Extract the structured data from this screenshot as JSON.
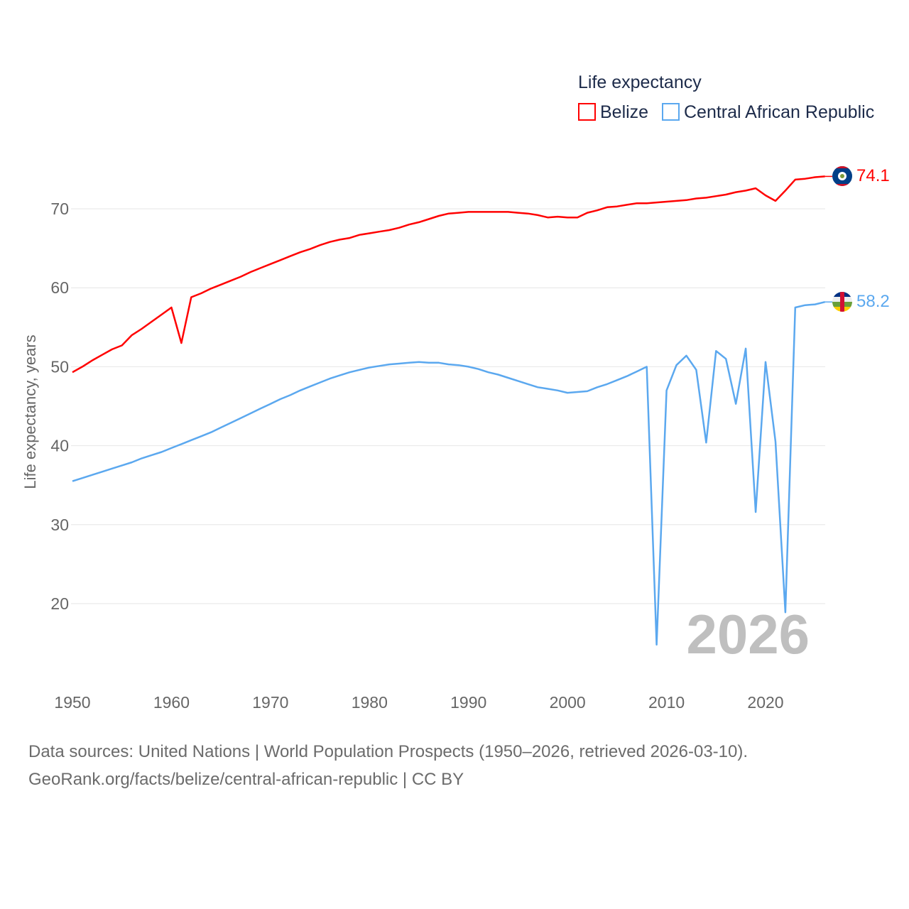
{
  "chart_data": {
    "type": "line",
    "legend_title": "Life expectancy",
    "legend_position": "top-right",
    "ylabel": "Life expectancy, years",
    "xlabel": "",
    "xlim": [
      1950,
      2026
    ],
    "ylim": [
      12,
      76
    ],
    "grid": true,
    "x_ticks": [
      "1950",
      "1960",
      "1970",
      "1980",
      "1990",
      "2000",
      "2010",
      "2020"
    ],
    "y_ticks": [
      "20",
      "30",
      "40",
      "50",
      "60",
      "70"
    ],
    "year_watermark": "2026",
    "x": [
      1950,
      1951,
      1952,
      1953,
      1954,
      1955,
      1956,
      1957,
      1958,
      1959,
      1960,
      1961,
      1962,
      1963,
      1964,
      1965,
      1966,
      1967,
      1968,
      1969,
      1970,
      1971,
      1972,
      1973,
      1974,
      1975,
      1976,
      1977,
      1978,
      1979,
      1980,
      1981,
      1982,
      1983,
      1984,
      1985,
      1986,
      1987,
      1988,
      1989,
      1990,
      1991,
      1992,
      1993,
      1994,
      1995,
      1996,
      1997,
      1998,
      1999,
      2000,
      2001,
      2002,
      2003,
      2004,
      2005,
      2006,
      2007,
      2008,
      2009,
      2010,
      2011,
      2012,
      2013,
      2014,
      2015,
      2016,
      2017,
      2018,
      2019,
      2020,
      2021,
      2022,
      2023,
      2024,
      2025,
      2026
    ],
    "series": [
      {
        "name": "Belize",
        "color": "#ff0000",
        "end_label": "74.1",
        "values": [
          49.3,
          50.0,
          50.8,
          51.5,
          52.2,
          52.7,
          54.0,
          54.8,
          55.7,
          56.6,
          57.5,
          53.0,
          58.8,
          59.3,
          59.9,
          60.4,
          60.9,
          61.4,
          62.0,
          62.5,
          63.0,
          63.5,
          64.0,
          64.5,
          64.9,
          65.4,
          65.8,
          66.1,
          66.3,
          66.7,
          66.9,
          67.1,
          67.3,
          67.6,
          68.0,
          68.3,
          68.7,
          69.1,
          69.4,
          69.5,
          69.6,
          69.6,
          69.6,
          69.6,
          69.6,
          69.5,
          69.4,
          69.2,
          68.9,
          69.0,
          68.9,
          68.9,
          69.5,
          69.8,
          70.2,
          70.3,
          70.5,
          70.7,
          70.7,
          70.8,
          70.9,
          71.0,
          71.1,
          71.3,
          71.4,
          71.6,
          71.8,
          72.1,
          72.3,
          72.6,
          71.7,
          71.0,
          72.3,
          73.7,
          73.8,
          74.0,
          74.1
        ]
      },
      {
        "name": "Central African Republic",
        "color": "#5ba8ef",
        "end_label": "58.2",
        "values": [
          35.5,
          35.9,
          36.3,
          36.7,
          37.1,
          37.5,
          37.9,
          38.4,
          38.8,
          39.2,
          39.7,
          40.2,
          40.7,
          41.2,
          41.7,
          42.3,
          42.9,
          43.5,
          44.1,
          44.7,
          45.3,
          45.9,
          46.4,
          47.0,
          47.5,
          48.0,
          48.5,
          48.9,
          49.3,
          49.6,
          49.9,
          50.1,
          50.3,
          50.4,
          50.5,
          50.6,
          50.5,
          50.5,
          50.3,
          50.2,
          50.0,
          49.7,
          49.3,
          49.0,
          48.6,
          48.2,
          47.8,
          47.4,
          47.2,
          47.0,
          46.7,
          46.8,
          46.9,
          47.4,
          47.8,
          48.3,
          48.8,
          49.4,
          50.0,
          14.8,
          47.0,
          50.2,
          51.4,
          49.6,
          40.4,
          52.0,
          51.0,
          45.3,
          52.3,
          31.6,
          50.6,
          40.5,
          18.9,
          57.5,
          57.8,
          57.9,
          58.2
        ]
      }
    ]
  },
  "sources": {
    "line1": "Data sources: United Nations | World Population Prospects (1950–2026, retrieved 2026-03-10).",
    "line2": "GeoRank.org/facts/belize/central-african-republic | CC BY"
  }
}
